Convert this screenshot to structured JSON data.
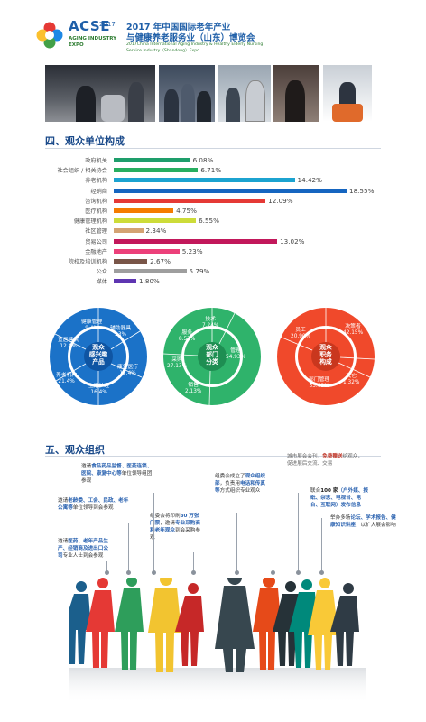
{
  "header": {
    "logo": {
      "acse": "ACSE",
      "year": "2017",
      "line1": "AGING INDUSTRY",
      "line2": "EXPO"
    },
    "title_line1": "2017 年中国国际老年产业",
    "title_line2": "与健康养老服务业（山东）博览会",
    "en_line1": "2017China International Aging Industry & Healthy Elderly Nursing",
    "en_line2": "Service Industry（Shandong）Expo"
  },
  "section4": {
    "title": "四、观众单位构成",
    "bars": [
      {
        "label": "政府机关",
        "value": "6.08%",
        "pct": 6.08,
        "color": "#1e9e6b"
      },
      {
        "label": "社会组织 / 相关协会",
        "value": "6.71%",
        "pct": 6.71,
        "color": "#27ae60"
      },
      {
        "label": "养老机构",
        "value": "14.42%",
        "pct": 14.42,
        "color": "#1ca3d0"
      },
      {
        "label": "经销商",
        "value": "18.55%",
        "pct": 18.55,
        "color": "#1565c0"
      },
      {
        "label": "咨询机构",
        "value": "12.09%",
        "pct": 12.09,
        "color": "#e53935"
      },
      {
        "label": "医疗机构",
        "value": "4.75%",
        "pct": 4.75,
        "color": "#f57c00"
      },
      {
        "label": "健康管理机构",
        "value": "6.55%",
        "pct": 6.55,
        "color": "#cddc39"
      },
      {
        "label": "社区管理",
        "value": "2.34%",
        "pct": 2.34,
        "color": "#d4a373"
      },
      {
        "label": "贸易公司",
        "value": "13.02%",
        "pct": 13.02,
        "color": "#c2185b"
      },
      {
        "label": "金融地产",
        "value": "5.23%",
        "pct": 5.23,
        "color": "#ec407a"
      },
      {
        "label": "院校及培训机构",
        "value": "2.67%",
        "pct": 2.67,
        "color": "#795548"
      },
      {
        "label": "公众",
        "value": "5.79%",
        "pct": 5.79,
        "color": "#9e9e9e"
      },
      {
        "label": "媒体",
        "value": "1.80%",
        "pct": 1.8,
        "color": "#5e35b1"
      }
    ],
    "donut_blue": {
      "center": [
        "观众",
        "感兴趣",
        "产品"
      ],
      "items": [
        {
          "label": "健康管理",
          "value": "9.4%"
        },
        {
          "label": "辅助器具",
          "value": "23%"
        },
        {
          "label": "康复医疗",
          "value": "17.4%"
        },
        {
          "label": "生活护理",
          "value": "16.4%"
        },
        {
          "label": "养老机构",
          "value": "21.4%"
        },
        {
          "label": "宜居建筑",
          "value": "12.4%"
        }
      ]
    },
    "donut_green": {
      "center": [
        "观众",
        "部门",
        "分类"
      ],
      "items": [
        {
          "label": "技术",
          "value": "7.24%"
        },
        {
          "label": "服务",
          "value": "8.57%"
        },
        {
          "label": "管理",
          "value": "54.93%"
        },
        {
          "label": "销售",
          "value": "2.13%"
        },
        {
          "label": "采购",
          "value": "27.13%"
        }
      ]
    },
    "donut_red": {
      "center": [
        "观众",
        "职务",
        "构成"
      ],
      "items": [
        {
          "label": "员工",
          "value": "20.90%"
        },
        {
          "label": "决策者",
          "value": "42.15%"
        },
        {
          "label": "部门管理",
          "value": "35.63%"
        },
        {
          "label": "其它",
          "value": "1.32%"
        }
      ]
    }
  },
  "section5": {
    "title": "五、观众组织",
    "n1": {
      "pre": "邀请",
      "hl": "医药、老年产品生产、经销商及进出口公司",
      "post": "专业人士到会参观"
    },
    "n2": {
      "pre": "邀请",
      "hl": "老龄委、工会、民政、老年公寓等",
      "post": "单位领导到会参观"
    },
    "n3": {
      "pre": "邀请",
      "hl": "食品药品监督、医药连锁、医院、康复中心等",
      "post": "单位领导组团参观"
    },
    "n4": {
      "pre": "组委会将印刷",
      "hl": "30 万张门票",
      "mid": "，邀请",
      "hl2": "专业采购商和老年观众",
      "post": "到会采购参观"
    },
    "n5": {
      "pre": "组委会成立了",
      "hl": "观众组织部",
      "mid": "，负责用",
      "hl2": "电话和传真等",
      "post": "方式组织专业观众"
    },
    "n6": {
      "pre": "城市展会会刊，",
      "hl": "免费赠送",
      "post": "给观众，促进展后交流、交易"
    },
    "n7": {
      "pre": "联合",
      "em": "100 家",
      "post": "（户外媒、报纸、杂志、电视台、电台、互联网）发布信息"
    },
    "n8": {
      "pre": "举办多场",
      "hl": "论坛、学术报告、健康知识讲座",
      "post": "，以扩大展会影响"
    }
  },
  "colors": {
    "brand_blue": "#1f5fa8",
    "donut_blue": "#1b72c8",
    "donut_green": "#2fb36b",
    "donut_red": "#f0492b"
  }
}
